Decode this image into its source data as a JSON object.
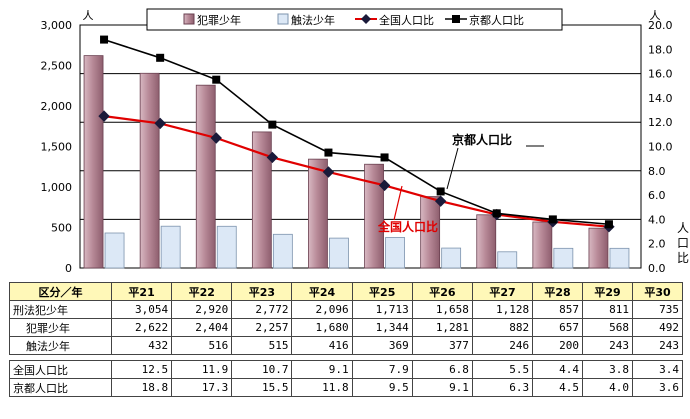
{
  "chart_data": {
    "type": "bar",
    "categories": [
      "平21",
      "平22",
      "平23",
      "平24",
      "平25",
      "平26",
      "平27",
      "平28",
      "平29",
      "平30"
    ],
    "y_left": {
      "unit": "人",
      "ylim": [
        0,
        3000
      ],
      "ticks": [
        "0",
        "500",
        "1,000",
        "1,500",
        "2,000",
        "2,500",
        "3,000"
      ]
    },
    "y_right": {
      "unit": "人",
      "label": "人口比",
      "ylim": [
        0,
        20
      ],
      "ticks": [
        "0.0",
        "2.0",
        "4.0",
        "6.0",
        "8.0",
        "10.0",
        "12.0",
        "14.0",
        "16.0",
        "18.0",
        "20.0"
      ]
    },
    "series": [
      {
        "name": "犯罪少年",
        "type": "bar",
        "axis": "left",
        "color": "#b08090",
        "values": [
          2622,
          2404,
          2257,
          1680,
          1344,
          1281,
          882,
          657,
          568,
          492
        ]
      },
      {
        "name": "触法少年",
        "type": "bar",
        "axis": "left",
        "color": "#dce8f6",
        "values": [
          432,
          516,
          515,
          416,
          369,
          377,
          246,
          200,
          243,
          243
        ]
      },
      {
        "name": "全国人口比",
        "type": "line",
        "axis": "right",
        "color": "#e00000",
        "values": [
          12.5,
          11.9,
          10.7,
          9.1,
          7.9,
          6.8,
          5.5,
          4.4,
          3.8,
          3.4
        ]
      },
      {
        "name": "京都人口比",
        "type": "line",
        "axis": "right",
        "color": "#000000",
        "values": [
          18.8,
          17.3,
          15.5,
          11.8,
          9.5,
          9.1,
          6.3,
          4.5,
          4.0,
          3.6
        ]
      }
    ],
    "annotations": [
      {
        "text": "京都人口比",
        "color": "#000000"
      },
      {
        "text": "全国人口比",
        "color": "#e00000"
      }
    ],
    "grid": true,
    "legend": "top-center"
  },
  "table": {
    "header_label": "区分／年",
    "rows": [
      {
        "label": "刑法犯少年",
        "values": [
          "3,054",
          "2,920",
          "2,772",
          "2,096",
          "1,713",
          "1,658",
          "1,128",
          "857",
          "811",
          "735"
        ]
      },
      {
        "label": "犯罪少年",
        "values": [
          "2,622",
          "2,404",
          "2,257",
          "1,680",
          "1,344",
          "1,281",
          "882",
          "657",
          "568",
          "492"
        ]
      },
      {
        "label": "触法少年",
        "values": [
          "432",
          "516",
          "515",
          "416",
          "369",
          "377",
          "246",
          "200",
          "243",
          "243"
        ]
      },
      {
        "label": "全国人口比",
        "values": [
          "12.5",
          "11.9",
          "10.7",
          "9.1",
          "7.9",
          "6.8",
          "5.5",
          "4.4",
          "3.8",
          "3.4"
        ]
      },
      {
        "label": "京都人口比",
        "values": [
          "18.8",
          "17.3",
          "15.5",
          "11.8",
          "9.5",
          "9.1",
          "6.3",
          "4.5",
          "4.0",
          "3.6"
        ]
      }
    ]
  }
}
